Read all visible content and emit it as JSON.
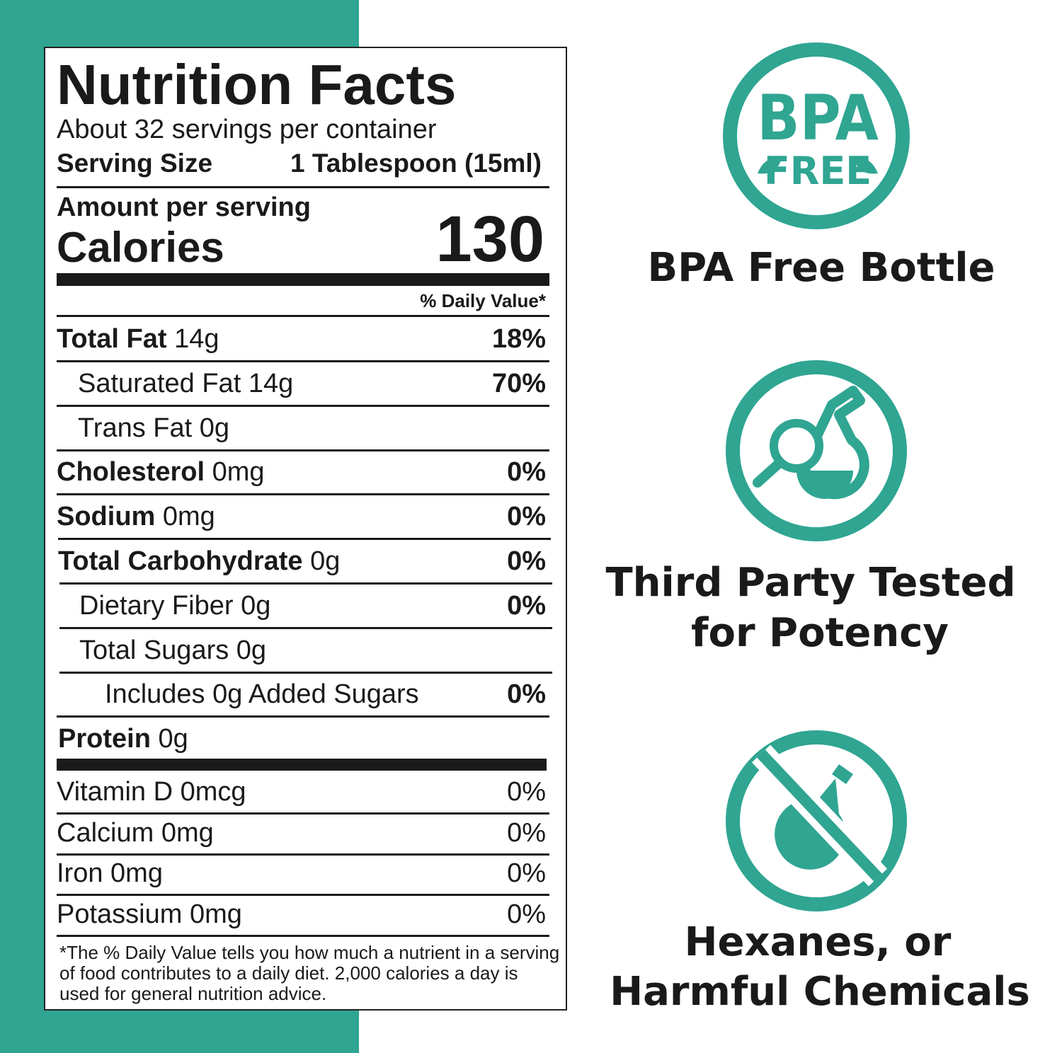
{
  "label": {
    "title": "Nutrition Facts",
    "servings": "About 32 servings per container",
    "serving_size_label": "Serving Size",
    "serving_size": "1 Tablespoon (15ml)",
    "amount_per_serving": "Amount per serving",
    "calories_label": "Calories",
    "calories": 130,
    "daily_value_header": "% Daily Value*",
    "nutrients": [
      {
        "name": "Total Fat",
        "amount": "14g",
        "daily_value": "18%"
      },
      {
        "name": "Saturated Fat",
        "amount": "14g",
        "daily_value": "70%"
      },
      {
        "name": "Trans Fat",
        "amount": "0g"
      },
      {
        "name": "Cholesterol",
        "amount": "0mg",
        "daily_value": "0%"
      },
      {
        "name": "Sodium",
        "amount": "0mg",
        "daily_value": "0%"
      },
      {
        "name": "Total Carbohydrate",
        "amount": "0g",
        "daily_value": "0%"
      },
      {
        "name": "Dietary Fiber",
        "amount": "0g",
        "daily_value": "0%"
      },
      {
        "name": "Total Sugars",
        "amount": "0g"
      },
      {
        "name": "Includes 0g Added Sugars",
        "daily_value": "0%"
      },
      {
        "name": "Protein",
        "amount": "0g"
      }
    ],
    "vitamins": [
      {
        "name": "Vitamin D",
        "amount": "0mcg",
        "daily_value": "0%"
      },
      {
        "name": "Calcium",
        "amount": "0mg",
        "daily_value": "0%"
      },
      {
        "name": "Iron",
        "amount": "0mg",
        "daily_value": "0%"
      },
      {
        "name": "Potassium",
        "amount": "0mg",
        "daily_value": "0%"
      }
    ],
    "footnote": "*The % Daily Value tells you how much a nutrient in a serving of food contributes to a daily diet. 2,000 calories a day is used for general nutrition advice."
  },
  "badges": [
    {
      "icon_lines": [
        "BPA",
        "FREE"
      ],
      "caption_lines": [
        "BPA Free Bottle"
      ]
    },
    {
      "caption_lines": [
        "Third Party Tested",
        "for Potency"
      ]
    },
    {
      "caption_lines": [
        "Hexanes, or",
        "Harmful Chemicals"
      ]
    }
  ]
}
